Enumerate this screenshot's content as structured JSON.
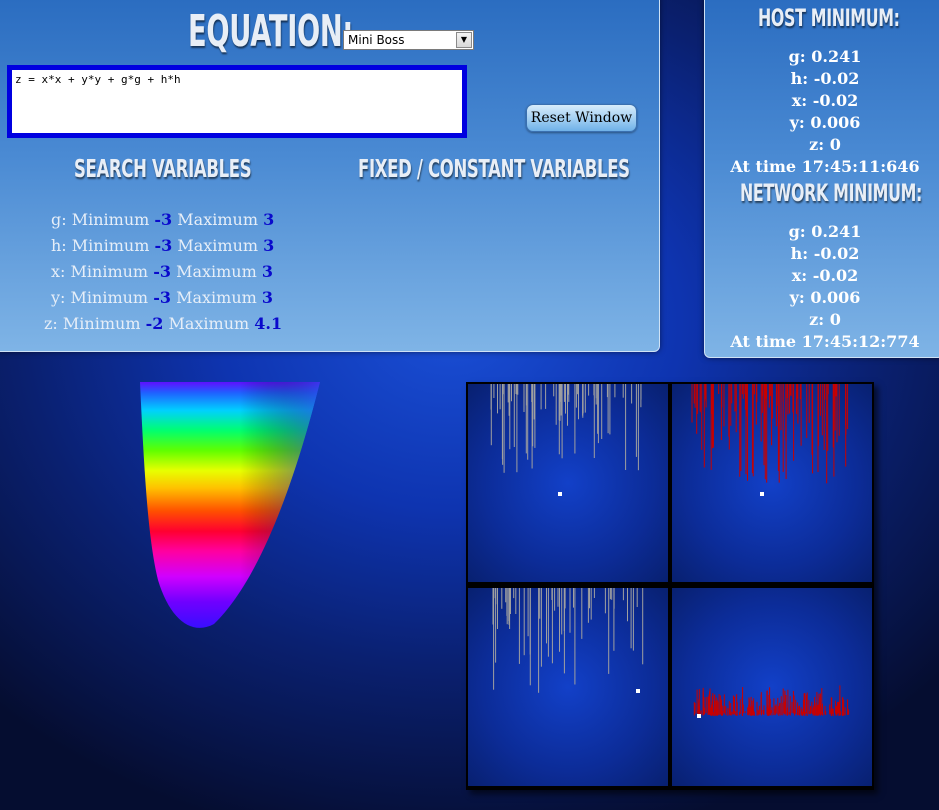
{
  "header": {
    "title": "EQUATION:",
    "selected_equation": "Mini Boss",
    "equation_text": "z = x*x + y*y + g*g + h*h",
    "reset_label": "Reset Window"
  },
  "search": {
    "title": "SEARCH VARIABLES",
    "min_label": "Minimum",
    "max_label": "Maximum",
    "variables": [
      {
        "name": "g:",
        "min": "-3",
        "max": "3"
      },
      {
        "name": "h:",
        "min": "-3",
        "max": "3"
      },
      {
        "name": "x:",
        "min": "-3",
        "max": "3"
      },
      {
        "name": "y:",
        "min": "-3",
        "max": "3"
      },
      {
        "name": "z:",
        "min": "-2",
        "max": "4.1"
      }
    ]
  },
  "fixed": {
    "title": "FIXED / CONSTANT VARIABLES"
  },
  "host_minimum": {
    "title": "HOST MINIMUM:",
    "lines": [
      "g: 0.241",
      "h: -0.02",
      "x: -0.02",
      "y: 0.006",
      "z: 0",
      "At time 17:45:11:646"
    ]
  },
  "network_minimum": {
    "title": "NETWORK MINIMUM:",
    "lines": [
      "g: 0.241",
      "h: -0.02",
      "x: -0.02",
      "y: 0.006",
      "z: 0",
      "At time 17:45:12:774"
    ]
  },
  "colors": {
    "value_blue": "#0a0acc",
    "equation_border": "#0000e0",
    "trace_gray": "#a0a0a0",
    "trace_red": "#c80000"
  }
}
